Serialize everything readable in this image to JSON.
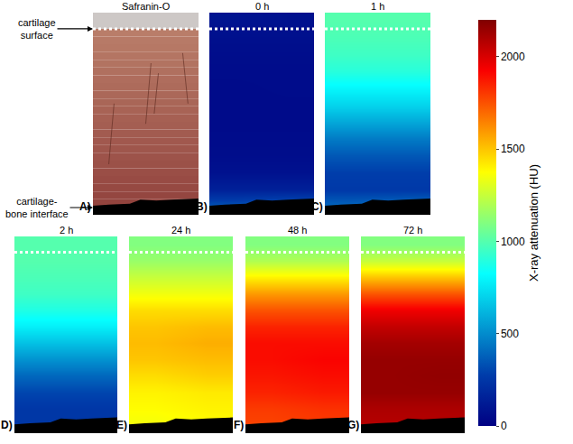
{
  "chart_data": {
    "type": "heatmap",
    "tick_labels": false,
    "annotations": [
      [
        "cartilage",
        "surface"
      ],
      [
        "cartilage-",
        "bone interface"
      ]
    ],
    "colorbar": {
      "title": "X-ray attenuation (HU)",
      "range": [
        0,
        2200
      ],
      "ticks": [
        0,
        500,
        1000,
        1500,
        2000
      ]
    },
    "panels": [
      {
        "label": "A)",
        "title": "Safranin-O"
      },
      {
        "label": "B)",
        "title": "0 h",
        "cells": [
          [
            90,
            80
          ],
          [
            70,
            70
          ],
          [
            60,
            60
          ],
          [
            55,
            55
          ],
          [
            50,
            55
          ],
          [
            50,
            50
          ],
          [
            50,
            50
          ],
          [
            55,
            55
          ],
          [
            60,
            60
          ],
          [
            80,
            80
          ],
          [
            150,
            150
          ],
          [
            350,
            380
          ]
        ]
      },
      {
        "label": "C)",
        "title": "1 h",
        "cells": [
          [
            1000,
            1000
          ],
          [
            980,
            980
          ],
          [
            950,
            950
          ],
          [
            900,
            900
          ],
          [
            800,
            800
          ],
          [
            700,
            700
          ],
          [
            580,
            580
          ],
          [
            450,
            450
          ],
          [
            350,
            350
          ],
          [
            280,
            280
          ],
          [
            260,
            260
          ],
          [
            400,
            420
          ]
        ]
      },
      {
        "label": "D)",
        "title": "2 h",
        "cells": [
          [
            1000,
            1000
          ],
          [
            1000,
            1000
          ],
          [
            980,
            980
          ],
          [
            950,
            950
          ],
          [
            880,
            880
          ],
          [
            780,
            780
          ],
          [
            650,
            650
          ],
          [
            520,
            520
          ],
          [
            400,
            400
          ],
          [
            300,
            300
          ],
          [
            250,
            250
          ],
          [
            250,
            250
          ]
        ]
      },
      {
        "label": "E)",
        "title": "24 h",
        "cells": [
          [
            1100,
            1100
          ],
          [
            1150,
            1150
          ],
          [
            1250,
            1250
          ],
          [
            1350,
            1350
          ],
          [
            1450,
            1450
          ],
          [
            1500,
            1520
          ],
          [
            1520,
            1550
          ],
          [
            1500,
            1520
          ],
          [
            1450,
            1480
          ],
          [
            1400,
            1420
          ],
          [
            1380,
            1400
          ],
          [
            1350,
            1380
          ]
        ]
      },
      {
        "label": "F)",
        "title": "48 h",
        "cells": [
          [
            1100,
            1100
          ],
          [
            1200,
            1200
          ],
          [
            1400,
            1400
          ],
          [
            1600,
            1600
          ],
          [
            1750,
            1750
          ],
          [
            1850,
            1850
          ],
          [
            1900,
            1900
          ],
          [
            1900,
            1920
          ],
          [
            1880,
            1900
          ],
          [
            1850,
            1870
          ],
          [
            1800,
            1820
          ],
          [
            1780,
            1800
          ]
        ]
      },
      {
        "label": "G)",
        "title": "72 h",
        "cells": [
          [
            1100,
            1100
          ],
          [
            1250,
            1250
          ],
          [
            1500,
            1500
          ],
          [
            1750,
            1750
          ],
          [
            1950,
            1950
          ],
          [
            2050,
            2050
          ],
          [
            2120,
            2120
          ],
          [
            2150,
            2150
          ],
          [
            2150,
            2160
          ],
          [
            2150,
            2150
          ],
          [
            2100,
            2100
          ],
          [
            2080,
            2080
          ]
        ]
      }
    ]
  }
}
